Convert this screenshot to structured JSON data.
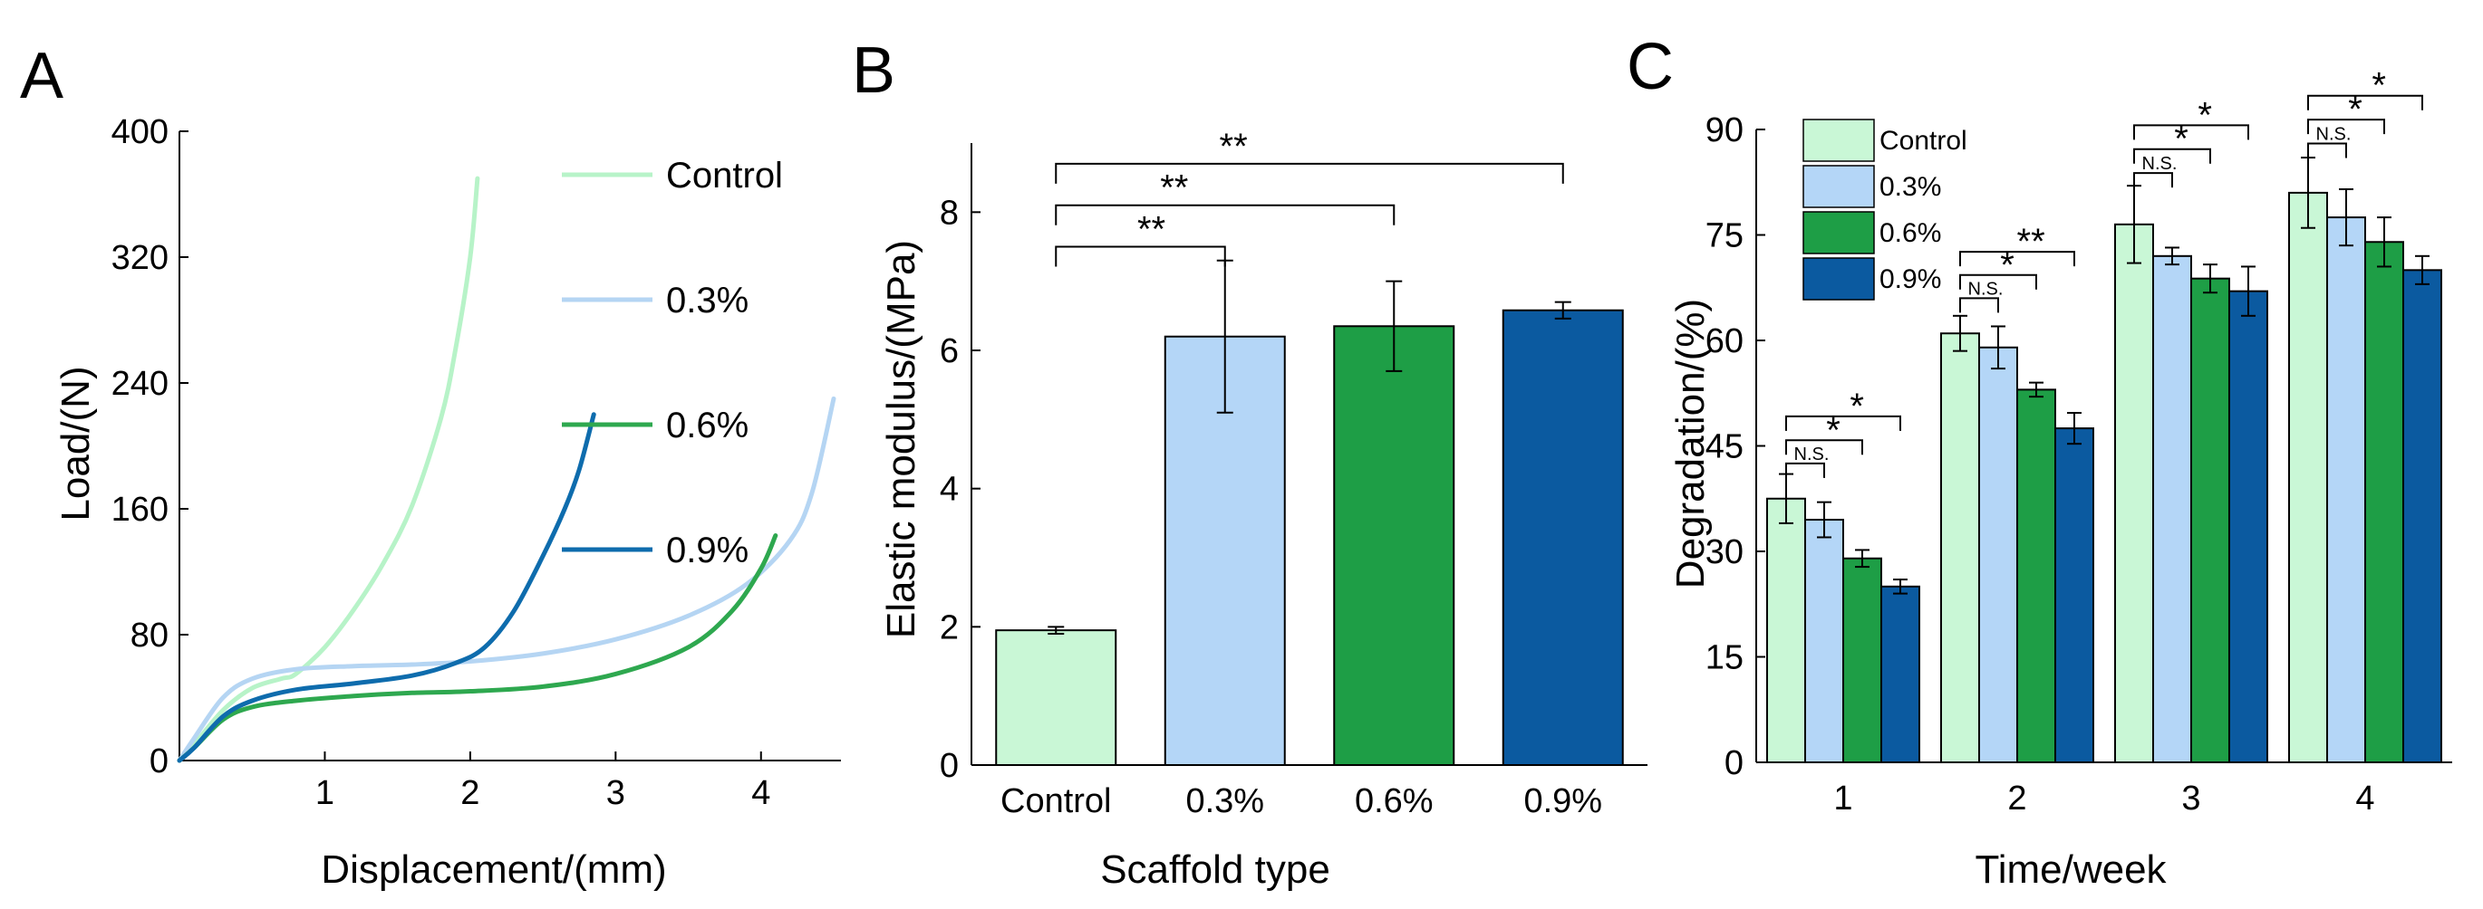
{
  "colors": {
    "control": "#c9f7d6",
    "p03": "#b4d6f7",
    "p06": "#1e9e46",
    "p09": "#0b5aa0",
    "line_control": "#b7f3c8",
    "line_p03": "#b5d5f3",
    "line_p06": "#2ea84f",
    "line_p09": "#0e6cad"
  },
  "chart_data": [
    {
      "panel": "A",
      "type": "line",
      "xlabel": "Displacement/(mm)",
      "ylabel": "Load/(N)",
      "xlim": [
        0,
        4.55
      ],
      "ylim": [
        0,
        400
      ],
      "xticks": [
        1,
        2,
        3,
        4
      ],
      "yticks": [
        0,
        80,
        160,
        240,
        320,
        400
      ],
      "legend_position": "top-right",
      "series": [
        {
          "name": "Control",
          "color_key": "line_control",
          "x": [
            0,
            0.1,
            0.3,
            0.5,
            0.7,
            0.8,
            1.0,
            1.2,
            1.4,
            1.6,
            1.8,
            1.9,
            2.0,
            2.05
          ],
          "y": [
            0,
            10,
            32,
            46,
            52,
            55,
            72,
            96,
            125,
            162,
            218,
            262,
            320,
            370
          ]
        },
        {
          "name": "0.3%",
          "color_key": "line_p03",
          "x": [
            0,
            0.1,
            0.3,
            0.5,
            0.8,
            1.2,
            1.6,
            2.0,
            2.5,
            3.0,
            3.5,
            3.9,
            4.2,
            4.35,
            4.5
          ],
          "y": [
            0,
            14,
            40,
            52,
            58,
            60,
            61,
            63,
            68,
            77,
            92,
            112,
            140,
            170,
            230
          ]
        },
        {
          "name": "0.6%",
          "color_key": "line_p06",
          "x": [
            0,
            0.1,
            0.3,
            0.5,
            0.8,
            1.2,
            1.6,
            2.0,
            2.5,
            3.0,
            3.5,
            3.8,
            4.0,
            4.1
          ],
          "y": [
            0,
            8,
            26,
            34,
            38,
            41,
            43,
            44,
            47,
            55,
            72,
            95,
            122,
            143
          ]
        },
        {
          "name": "0.9%",
          "color_key": "line_p09",
          "x": [
            0,
            0.1,
            0.3,
            0.5,
            0.8,
            1.2,
            1.6,
            1.9,
            2.1,
            2.3,
            2.5,
            2.65,
            2.75,
            2.85
          ],
          "y": [
            0,
            8,
            28,
            38,
            45,
            49,
            54,
            62,
            72,
            95,
            130,
            160,
            185,
            220
          ]
        }
      ]
    },
    {
      "panel": "B",
      "type": "bar",
      "xlabel": "Scaffold type",
      "ylabel": "Elastic modulus/(MPa)",
      "ylim": [
        0,
        9
      ],
      "yticks": [
        0,
        2,
        4,
        6,
        8
      ],
      "categories": [
        "Control",
        "0.3%",
        "0.6%",
        "0.9%"
      ],
      "color_keys": [
        "control",
        "p03",
        "p06",
        "p09"
      ],
      "values": [
        1.95,
        6.2,
        6.35,
        6.58
      ],
      "errors": [
        0.05,
        1.1,
        0.65,
        0.12
      ],
      "significance": [
        {
          "from": 0,
          "to": 1,
          "label": "**",
          "y": 7.5
        },
        {
          "from": 0,
          "to": 2,
          "label": "**",
          "y": 8.1
        },
        {
          "from": 0,
          "to": 3,
          "label": "**",
          "y": 8.7
        }
      ]
    },
    {
      "panel": "C",
      "type": "bar",
      "xlabel": "Time/week",
      "ylabel": "Degradation/(%)",
      "ylim": [
        0,
        90
      ],
      "yticks": [
        0,
        15,
        30,
        45,
        60,
        75,
        90
      ],
      "categories": [
        "1",
        "2",
        "3",
        "4"
      ],
      "legend_position": "top-left",
      "series": [
        {
          "name": "Control",
          "color_key": "control",
          "values": [
            37.5,
            61.0,
            76.5,
            81.0
          ],
          "errors": [
            3.5,
            2.5,
            5.5,
            5.0
          ]
        },
        {
          "name": "0.3%",
          "color_key": "p03",
          "values": [
            34.5,
            59.0,
            72.0,
            77.5
          ],
          "errors": [
            2.5,
            3.0,
            1.2,
            4.0
          ]
        },
        {
          "name": "0.6%",
          "color_key": "p06",
          "values": [
            29.0,
            53.0,
            68.8,
            74.0
          ],
          "errors": [
            1.2,
            1.0,
            2.0,
            3.5
          ]
        },
        {
          "name": "0.9%",
          "color_key": "p09",
          "values": [
            25.0,
            47.5,
            67.0,
            70.0
          ],
          "errors": [
            1.0,
            2.2,
            3.5,
            2.0
          ]
        }
      ],
      "significance": [
        {
          "group": 0,
          "from": 0,
          "to": 1,
          "label": "N.S.",
          "y": 42.5
        },
        {
          "group": 0,
          "from": 0,
          "to": 2,
          "label": "*",
          "y": 45.8
        },
        {
          "group": 0,
          "from": 0,
          "to": 3,
          "label": "*",
          "y": 49.2
        },
        {
          "group": 1,
          "from": 0,
          "to": 1,
          "label": "N.S.",
          "y": 66.0
        },
        {
          "group": 1,
          "from": 0,
          "to": 2,
          "label": "*",
          "y": 69.3
        },
        {
          "group": 1,
          "from": 0,
          "to": 3,
          "label": "**",
          "y": 72.6
        },
        {
          "group": 2,
          "from": 0,
          "to": 1,
          "label": "N.S.",
          "y": 83.8
        },
        {
          "group": 2,
          "from": 0,
          "to": 2,
          "label": "*",
          "y": 87.2
        },
        {
          "group": 2,
          "from": 0,
          "to": 3,
          "label": "*",
          "y": 90.6
        },
        {
          "group": 3,
          "from": 0,
          "to": 1,
          "label": "N.S.",
          "y": 88.0
        },
        {
          "group": 3,
          "from": 0,
          "to": 2,
          "label": "*",
          "y": 91.4
        },
        {
          "group": 3,
          "from": 0,
          "to": 3,
          "label": "*",
          "y": 94.8
        }
      ]
    }
  ],
  "panels": {
    "a_letter": "A",
    "b_letter": "B",
    "c_letter": "C"
  }
}
